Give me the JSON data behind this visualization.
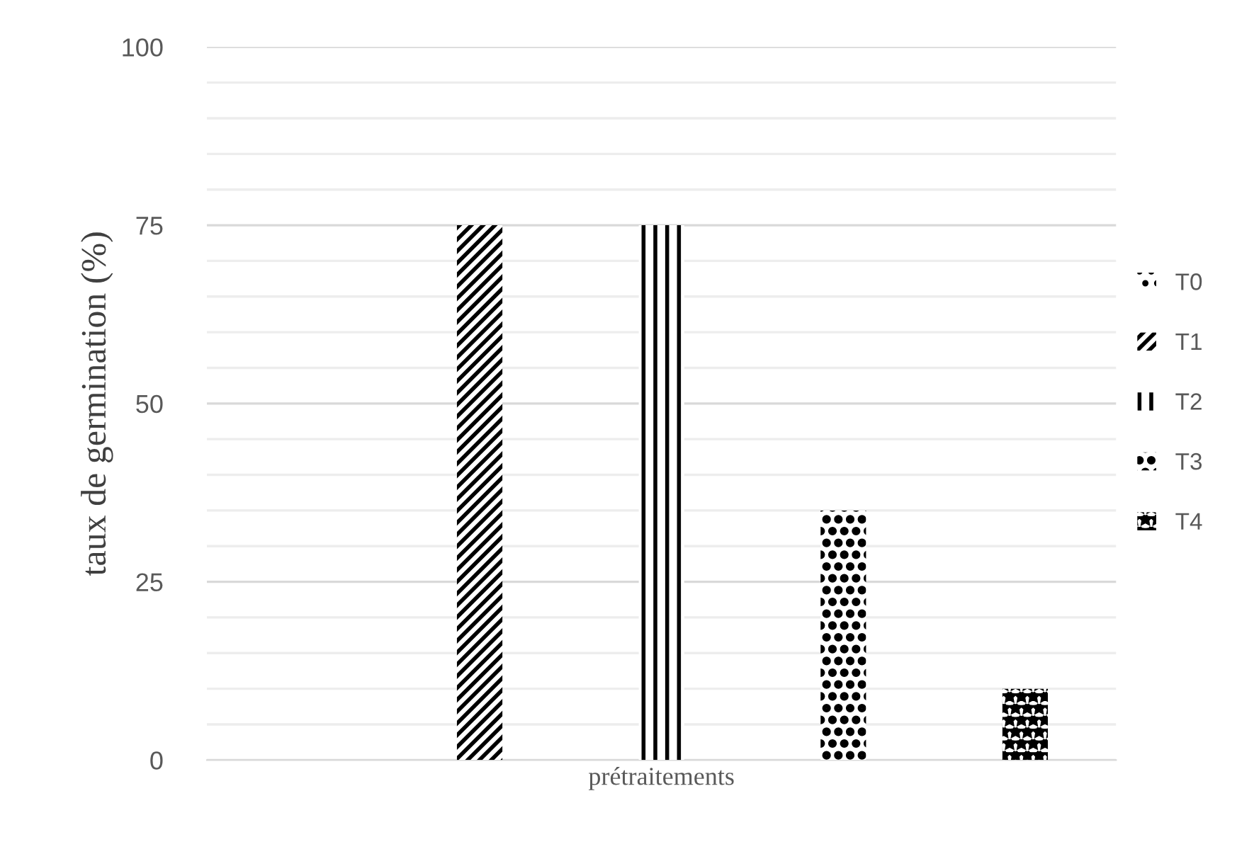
{
  "chart_data": {
    "type": "bar",
    "ylabel": "taux de germination (%)",
    "categories": [
      "prétraitements"
    ],
    "series": [
      {
        "name": "T0",
        "color": "#000000",
        "values": [
          0
        ]
      },
      {
        "name": "T1",
        "color": "#000000",
        "values": [
          75
        ]
      },
      {
        "name": "T2",
        "color": "#000000",
        "values": [
          75
        ]
      },
      {
        "name": "T3",
        "color": "#000000",
        "values": [
          35
        ]
      },
      {
        "name": "T4",
        "color": "#000000",
        "values": [
          10
        ]
      }
    ],
    "ylim": [
      0,
      100
    ],
    "yticks": [
      0,
      {
        "value": 5,
        "label": null
      },
      {
        "value": 10,
        "label": null
      },
      {
        "value": 15,
        "label": null
      },
      {
        "value": 20,
        "label": null
      },
      25,
      {
        "value": 30,
        "label": null
      },
      {
        "value": 35,
        "label": null
      },
      {
        "value": 40,
        "label": null
      },
      {
        "value": 45,
        "label": null
      },
      50,
      {
        "value": 55,
        "label": null
      },
      {
        "value": 60,
        "label": null
      },
      {
        "value": 65,
        "label": null
      },
      {
        "value": 70,
        "label": null
      },
      75,
      {
        "value": 80,
        "label": null
      },
      {
        "value": 85,
        "label": null
      },
      {
        "value": 90,
        "label": null
      },
      {
        "value": 95,
        "label": null
      },
      100
    ],
    "grid": "y",
    "legend": "right"
  }
}
